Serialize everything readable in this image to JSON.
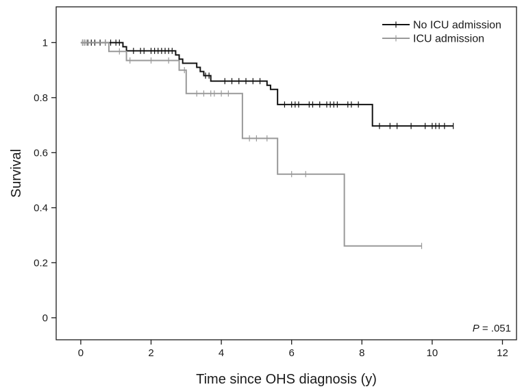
{
  "chart_data": {
    "type": "line",
    "subtype": "kaplan-meier-step",
    "title": "",
    "xlabel": "Time since OHS diagnosis (y)",
    "ylabel": "Survival",
    "xlim": [
      -0.7,
      12.4
    ],
    "ylim": [
      -0.08,
      1.13
    ],
    "xticks": [
      0,
      2,
      4,
      6,
      8,
      10,
      12
    ],
    "xtick_labels": [
      "0",
      "2",
      "4",
      "6",
      "8",
      "10",
      "12"
    ],
    "yticks": [
      0,
      0.2,
      0.4,
      0.6,
      0.8,
      1
    ],
    "ytick_labels": [
      "0",
      "0.2",
      "0.4",
      "0.6",
      "0.8",
      "1"
    ],
    "grid": false,
    "legend_position": "top-right",
    "annotation": {
      "italic": "P",
      "text": " = .051"
    },
    "series": [
      {
        "name": "No ICU admission",
        "color": "#111111",
        "steps": [
          [
            0,
            1.0
          ],
          [
            1.2,
            0.985
          ],
          [
            1.3,
            0.97
          ],
          [
            2.7,
            0.955
          ],
          [
            2.8,
            0.94
          ],
          [
            2.9,
            0.925
          ],
          [
            3.3,
            0.91
          ],
          [
            3.4,
            0.895
          ],
          [
            3.5,
            0.88
          ],
          [
            3.7,
            0.86
          ],
          [
            5.3,
            0.845
          ],
          [
            5.4,
            0.83
          ],
          [
            5.6,
            0.775
          ],
          [
            8.3,
            0.697
          ]
        ],
        "end_x": 10.6,
        "censored": [
          [
            0.05,
            1.0
          ],
          [
            0.1,
            1.0
          ],
          [
            0.2,
            1.0
          ],
          [
            0.3,
            1.0
          ],
          [
            0.4,
            1.0
          ],
          [
            0.55,
            1.0
          ],
          [
            0.7,
            1.0
          ],
          [
            0.85,
            1.0
          ],
          [
            1.0,
            1.0
          ],
          [
            1.1,
            1.0
          ],
          [
            1.5,
            0.97
          ],
          [
            1.7,
            0.97
          ],
          [
            1.8,
            0.97
          ],
          [
            2.0,
            0.97
          ],
          [
            2.1,
            0.97
          ],
          [
            2.2,
            0.97
          ],
          [
            2.3,
            0.97
          ],
          [
            2.4,
            0.97
          ],
          [
            2.5,
            0.97
          ],
          [
            2.6,
            0.97
          ],
          [
            3.55,
            0.88
          ],
          [
            3.65,
            0.88
          ],
          [
            4.1,
            0.86
          ],
          [
            4.3,
            0.86
          ],
          [
            4.5,
            0.86
          ],
          [
            4.7,
            0.86
          ],
          [
            4.9,
            0.86
          ],
          [
            5.1,
            0.86
          ],
          [
            5.8,
            0.775
          ],
          [
            6.0,
            0.775
          ],
          [
            6.1,
            0.775
          ],
          [
            6.2,
            0.775
          ],
          [
            6.5,
            0.775
          ],
          [
            6.6,
            0.775
          ],
          [
            6.8,
            0.775
          ],
          [
            7.0,
            0.775
          ],
          [
            7.1,
            0.775
          ],
          [
            7.2,
            0.775
          ],
          [
            7.3,
            0.775
          ],
          [
            7.6,
            0.775
          ],
          [
            7.7,
            0.775
          ],
          [
            7.9,
            0.775
          ],
          [
            8.5,
            0.697
          ],
          [
            8.8,
            0.697
          ],
          [
            9.0,
            0.697
          ],
          [
            9.4,
            0.697
          ],
          [
            9.8,
            0.697
          ],
          [
            10.0,
            0.697
          ],
          [
            10.1,
            0.697
          ],
          [
            10.2,
            0.697
          ],
          [
            10.35,
            0.697
          ],
          [
            10.6,
            0.697
          ]
        ]
      },
      {
        "name": "ICU admission",
        "color": "#999999",
        "steps": [
          [
            0,
            1.0
          ],
          [
            0.8,
            0.968
          ],
          [
            1.3,
            0.935
          ],
          [
            2.8,
            0.9
          ],
          [
            3.0,
            0.815
          ],
          [
            4.6,
            0.652
          ],
          [
            5.6,
            0.522
          ],
          [
            7.5,
            0.261
          ]
        ],
        "end_x": 9.7,
        "censored": [
          [
            0.05,
            1.0
          ],
          [
            0.1,
            1.0
          ],
          [
            0.15,
            1.0
          ],
          [
            0.7,
            1.0
          ],
          [
            1.1,
            0.968
          ],
          [
            1.4,
            0.935
          ],
          [
            2.0,
            0.935
          ],
          [
            2.5,
            0.935
          ],
          [
            2.95,
            0.9
          ],
          [
            3.3,
            0.815
          ],
          [
            3.5,
            0.815
          ],
          [
            3.7,
            0.815
          ],
          [
            3.8,
            0.815
          ],
          [
            4.0,
            0.815
          ],
          [
            4.2,
            0.815
          ],
          [
            4.8,
            0.652
          ],
          [
            5.0,
            0.652
          ],
          [
            5.3,
            0.652
          ],
          [
            6.0,
            0.522
          ],
          [
            6.4,
            0.522
          ],
          [
            9.7,
            0.261
          ]
        ]
      }
    ]
  }
}
